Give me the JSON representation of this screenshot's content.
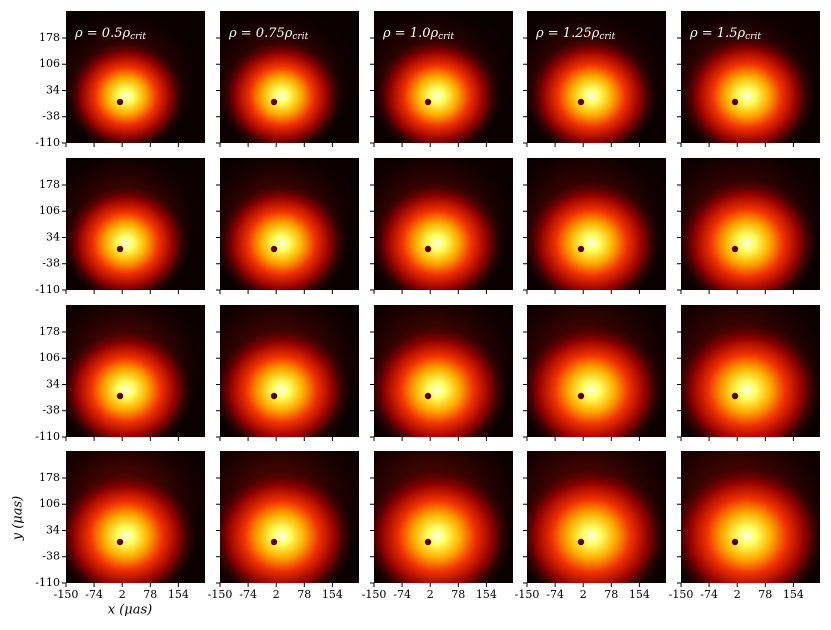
{
  "chart_data": {
    "type": "heatmap",
    "columns": [
      {
        "prefix": "ρ = 0.5ρ",
        "sub": "crit"
      },
      {
        "prefix": "ρ = 0.75ρ",
        "sub": "crit"
      },
      {
        "prefix": "ρ = 1.0ρ",
        "sub": "crit"
      },
      {
        "prefix": "ρ = 1.25ρ",
        "sub": "crit"
      },
      {
        "prefix": "ρ = 1.5ρ",
        "sub": "crit"
      }
    ],
    "x_label": "x (μas)",
    "y_label": "y (μas)",
    "xlim": [
      -150,
      226
    ],
    "ylim": [
      -110,
      252
    ],
    "xticks": [
      -150,
      -74,
      2,
      78,
      154
    ],
    "yticks": [
      -110,
      -38,
      34,
      106,
      178
    ]
  }
}
